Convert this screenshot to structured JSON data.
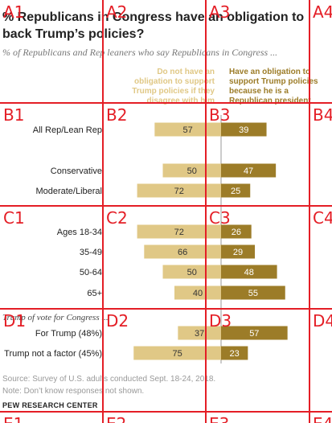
{
  "title_lines": [
    "% Republicans in Congress have an obligation to",
    "back Trump’s policies?"
  ],
  "subtitle": "% of Republicans and Rep leaners who say Republicans in Congress ...",
  "legend": {
    "left_lines": [
      "Do not have an",
      "obligation to support",
      "Trump policies if they",
      "disagree with him"
    ],
    "right_lines": [
      "Have an obligation to",
      "support Trump policies",
      "because he is a",
      "Republican president"
    ]
  },
  "colors": {
    "left": "#e0c886",
    "right": "#9c7c28",
    "grid": "#e41e26"
  },
  "chart_data": {
    "type": "bar",
    "series": [
      {
        "name": "Do not have an obligation to support Trump policies if they disagree with him",
        "color": "#e0c886"
      },
      {
        "name": "Have an obligation to support Trump policies because he is a Republican president",
        "color": "#9c7c28"
      }
    ],
    "groups": [
      {
        "label": "",
        "rows": [
          {
            "label": "All Rep/Lean Rep",
            "left": 57,
            "right": 39
          }
        ]
      },
      {
        "label": "",
        "rows": [
          {
            "label": "Conservative",
            "left": 50,
            "right": 47
          },
          {
            "label": "Moderate/Liberal",
            "left": 72,
            "right": 25
          }
        ]
      },
      {
        "label": "",
        "rows": [
          {
            "label": "Ages 18-34",
            "left": 72,
            "right": 26
          },
          {
            "label": "35-49",
            "left": 66,
            "right": 29
          },
          {
            "label": "50-64",
            "left": 50,
            "right": 48
          },
          {
            "label": "65+",
            "left": 40,
            "right": 55
          }
        ]
      },
      {
        "label": "Trump of vote for Congress ...",
        "rows": [
          {
            "label": "For Trump (48%)",
            "left": 37,
            "right": 57
          },
          {
            "label": "Trump not a factor (45%)",
            "left": 75,
            "right": 23
          }
        ]
      }
    ]
  },
  "notes": [
    "Source: Survey of U.S. adults conducted Sept. 18-24, 2018.",
    "Note: Don’t know responses not shown."
  ],
  "brand": "PEW RESEARCH CENTER",
  "grid_overlay": {
    "row_labels": [
      "A",
      "B",
      "C",
      "D",
      "E"
    ],
    "col_labels": [
      "1",
      "2",
      "3",
      "4"
    ]
  }
}
